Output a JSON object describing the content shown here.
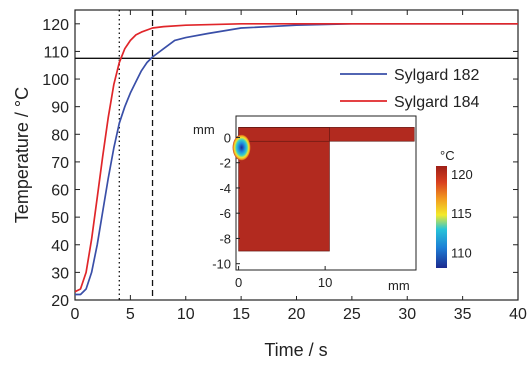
{
  "chart_data": {
    "type": "line",
    "title": "",
    "xlabel": "Time / s",
    "ylabel": "Temperature / °C",
    "xlim": [
      0,
      40
    ],
    "ylim": [
      20,
      125
    ],
    "xticks": [
      0,
      5,
      10,
      15,
      20,
      25,
      30,
      35,
      40
    ],
    "yticks": [
      20,
      30,
      40,
      50,
      60,
      70,
      80,
      90,
      100,
      110,
      120
    ],
    "legend_position": "right, upper-middle",
    "series": [
      {
        "name": "Sylgard 182",
        "color": "#3a4fa8",
        "x": [
          0,
          0.5,
          1,
          1.5,
          2,
          2.5,
          3,
          3.5,
          4,
          4.5,
          5,
          5.5,
          6,
          6.5,
          7,
          8,
          9,
          10,
          12,
          15,
          20,
          25,
          30,
          35,
          40
        ],
        "y": [
          22,
          22,
          24,
          30,
          40,
          52,
          64,
          75,
          84,
          90,
          95,
          99,
          103,
          106,
          108,
          111,
          114,
          115,
          116.5,
          118.5,
          119.5,
          120,
          120,
          120,
          120
        ]
      },
      {
        "name": "Sylgard 184",
        "color": "#e0262a",
        "x": [
          0,
          0.5,
          1,
          1.5,
          2,
          2.5,
          3,
          3.5,
          4,
          4.5,
          5,
          5.5,
          6,
          7,
          8,
          10,
          15,
          20,
          25,
          30,
          35,
          40
        ],
        "y": [
          23,
          24,
          30,
          42,
          57,
          72,
          86,
          98,
          106,
          111,
          114,
          116,
          117,
          118.5,
          119,
          119.5,
          120,
          120,
          120,
          120,
          120,
          120
        ]
      }
    ],
    "reference_lines": [
      {
        "orientation": "horizontal",
        "value": 107.5,
        "style": "solid"
      },
      {
        "orientation": "vertical",
        "value": 4,
        "style": "dotted"
      },
      {
        "orientation": "vertical",
        "value": 7,
        "style": "dashed"
      }
    ],
    "inset": {
      "type": "heatmap",
      "x_unit": "mm",
      "y_unit": "mm",
      "xticks": [
        0,
        10
      ],
      "yticks": [
        0,
        -2,
        -4,
        -6,
        -8,
        -10
      ],
      "xlim": [
        -0.3,
        20.5
      ],
      "ylim": [
        -10.5,
        1.7
      ],
      "colorbar_unit": "°C",
      "colorbar_ticks": [
        110,
        115,
        120
      ],
      "colorbar_range": [
        108,
        121
      ],
      "field_color": "#b22a1f"
    }
  }
}
